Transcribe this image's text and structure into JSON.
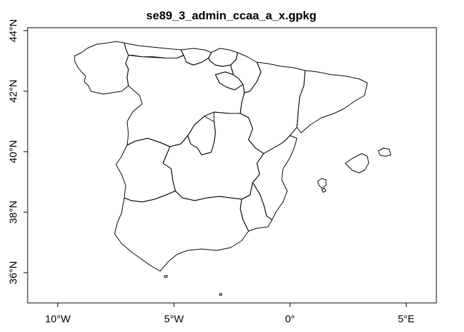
{
  "map": {
    "title": "se89_3_admin_ccaa_a_x.gpkg",
    "x_axis": {
      "ticks": [
        {
          "value": -10,
          "label": "10°W"
        },
        {
          "value": -5,
          "label": "5°W"
        },
        {
          "value": 0,
          "label": "0°"
        },
        {
          "value": 5,
          "label": "5°E"
        }
      ],
      "range": [
        -11.3,
        6.3
      ]
    },
    "y_axis": {
      "ticks": [
        {
          "value": 36,
          "label": "36°N"
        },
        {
          "value": 38,
          "label": "38°N"
        },
        {
          "value": 40,
          "label": "40°N"
        },
        {
          "value": 42,
          "label": "42°N"
        },
        {
          "value": 44,
          "label": "44°N"
        }
      ],
      "range": [
        35.0,
        44.1
      ]
    },
    "stroke_color": "#000000",
    "background_color": "#ffffff",
    "grid": false,
    "layer": "autonomous communities boundaries (outline)"
  }
}
